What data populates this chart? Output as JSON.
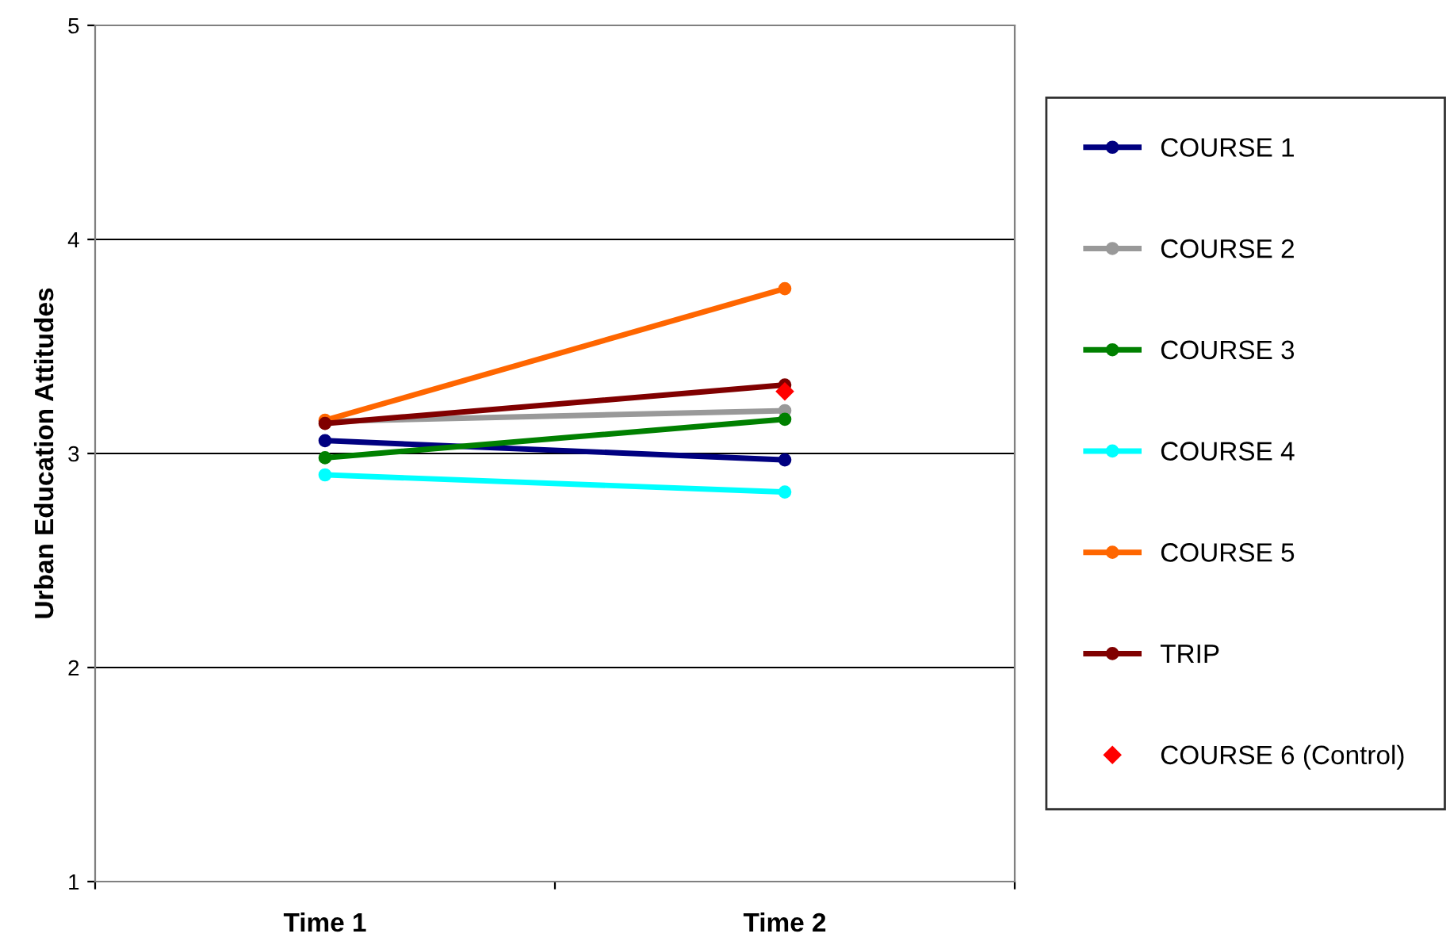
{
  "chart_data": {
    "type": "line",
    "ylabel": "Urban Education Attitudes",
    "categories": [
      "Time 1",
      "Time 2"
    ],
    "ylim": [
      1,
      5
    ],
    "yticks": [
      1,
      2,
      3,
      4,
      5
    ],
    "grid": "y",
    "legend": "right",
    "marker": "circle",
    "line_style": "solid",
    "series": [
      {
        "name": "COURSE 1",
        "color": "#000080",
        "values": [
          3.06,
          2.97
        ]
      },
      {
        "name": "COURSE 2",
        "color": "#999999",
        "values": [
          3.15,
          3.2
        ]
      },
      {
        "name": "COURSE 3",
        "color": "#008000",
        "values": [
          2.98,
          3.16
        ]
      },
      {
        "name": "COURSE 4",
        "color": "#00ffff",
        "values": [
          2.9,
          2.82
        ]
      },
      {
        "name": "COURSE 5",
        "color": "#ff6600",
        "values": [
          3.155,
          3.77
        ]
      },
      {
        "name": "TRIP",
        "color": "#800000",
        "values": [
          3.14,
          3.32
        ]
      },
      {
        "name": "COURSE 6 (Control)",
        "color": "#ff0000",
        "type": "scatter",
        "marker": "diamond",
        "values": [
          null,
          3.29
        ]
      }
    ]
  }
}
